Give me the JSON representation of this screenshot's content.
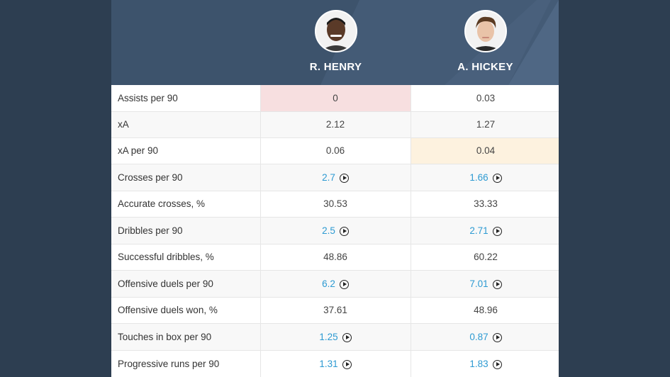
{
  "players": [
    {
      "name": "R. HENRY",
      "avatar_icon": "player-photo-henry"
    },
    {
      "name": "A. HICKEY",
      "avatar_icon": "player-photo-hickey"
    }
  ],
  "colors": {
    "background": "#2d3e51",
    "header": "#3d536c",
    "link": "#2d9ad2",
    "highlight_red": "#f7dfe0",
    "highlight_yellow": "#fdf2df"
  },
  "rows": [
    {
      "label": "Assists per 90",
      "v1": "0",
      "v2": "0.03",
      "video": false,
      "hl1": "red",
      "hl2": ""
    },
    {
      "label": "xA",
      "v1": "2.12",
      "v2": "1.27",
      "video": false,
      "hl1": "",
      "hl2": ""
    },
    {
      "label": "xA per 90",
      "v1": "0.06",
      "v2": "0.04",
      "video": false,
      "hl1": "",
      "hl2": "yellow"
    },
    {
      "label": "Crosses per 90",
      "v1": "2.7",
      "v2": "1.66",
      "video": true,
      "hl1": "",
      "hl2": ""
    },
    {
      "label": "Accurate crosses, %",
      "v1": "30.53",
      "v2": "33.33",
      "video": false,
      "hl1": "",
      "hl2": ""
    },
    {
      "label": "Dribbles per 90",
      "v1": "2.5",
      "v2": "2.71",
      "video": true,
      "hl1": "",
      "hl2": ""
    },
    {
      "label": "Successful dribbles, %",
      "v1": "48.86",
      "v2": "60.22",
      "video": false,
      "hl1": "",
      "hl2": ""
    },
    {
      "label": "Offensive duels per 90",
      "v1": "6.2",
      "v2": "7.01",
      "video": true,
      "hl1": "",
      "hl2": ""
    },
    {
      "label": "Offensive duels won, %",
      "v1": "37.61",
      "v2": "48.96",
      "video": false,
      "hl1": "",
      "hl2": ""
    },
    {
      "label": "Touches in box per 90",
      "v1": "1.25",
      "v2": "0.87",
      "video": true,
      "hl1": "",
      "hl2": ""
    },
    {
      "label": "Progressive runs per 90",
      "v1": "1.31",
      "v2": "1.83",
      "video": true,
      "hl1": "",
      "hl2": ""
    }
  ]
}
